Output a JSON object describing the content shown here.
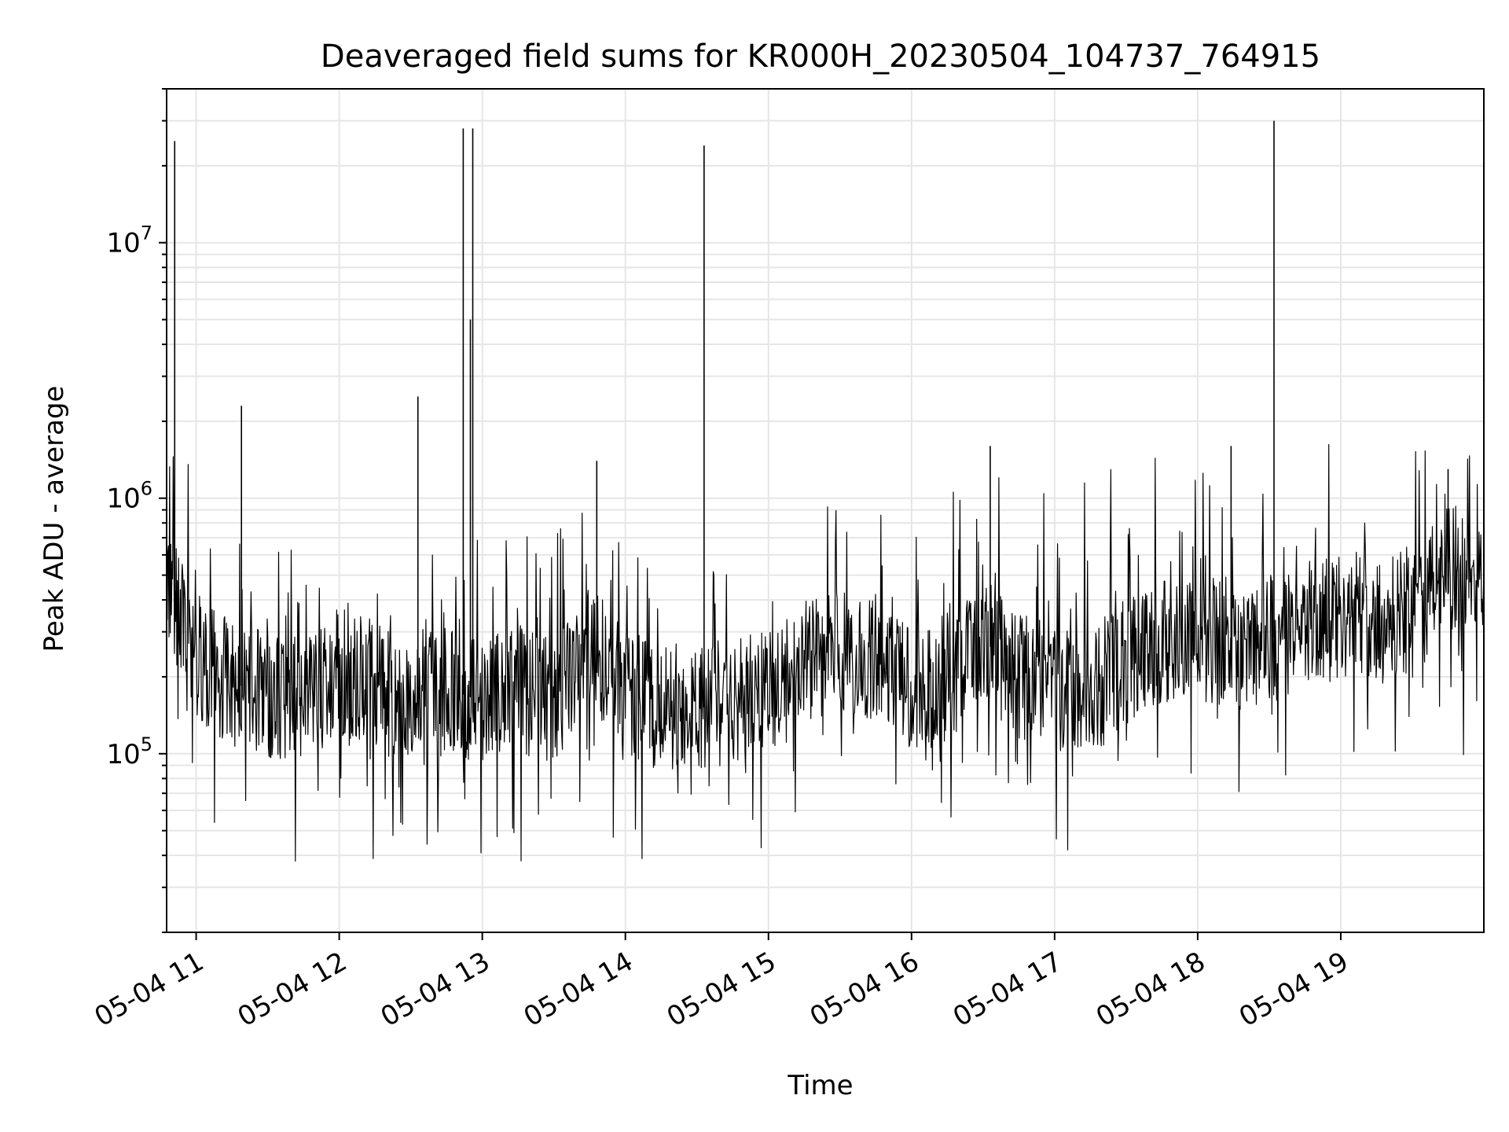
{
  "chart_data": {
    "type": "line",
    "title": "Deaveraged field sums for KR000H_20230504_104737_764915",
    "xlabel": "Time",
    "ylabel": "Peak ADU - average",
    "yscale": "log",
    "ylim": [
      20000,
      40000000
    ],
    "xlim": [
      "2023-05-04T10:47:37",
      "2023-05-04T20:00:00"
    ],
    "grid": true,
    "line_color": "#000000",
    "x_ticks": [
      {
        "t": "2023-05-04T11:00",
        "label": "05-04 11"
      },
      {
        "t": "2023-05-04T12:00",
        "label": "05-04 12"
      },
      {
        "t": "2023-05-04T13:00",
        "label": "05-04 13"
      },
      {
        "t": "2023-05-04T14:00",
        "label": "05-04 14"
      },
      {
        "t": "2023-05-04T15:00",
        "label": "05-04 15"
      },
      {
        "t": "2023-05-04T16:00",
        "label": "05-04 16"
      },
      {
        "t": "2023-05-04T17:00",
        "label": "05-04 17"
      },
      {
        "t": "2023-05-04T18:00",
        "label": "05-04 18"
      },
      {
        "t": "2023-05-04T19:00",
        "label": "05-04 19"
      }
    ],
    "y_ticks": [
      {
        "value": 100000,
        "base": "10",
        "exp": "5"
      },
      {
        "value": 1000000,
        "base": "10",
        "exp": "6"
      },
      {
        "value": 10000000,
        "base": "10",
        "exp": "7"
      }
    ],
    "spikes": [
      {
        "t": "2023-05-04T10:51:00",
        "value": 25000000
      },
      {
        "t": "2023-05-04T11:19:00",
        "value": 2300000
      },
      {
        "t": "2023-05-04T12:33:00",
        "value": 2500000
      },
      {
        "t": "2023-05-04T12:52:00",
        "value": 28000000
      },
      {
        "t": "2023-05-04T12:55:00",
        "value": 5000000
      },
      {
        "t": "2023-05-04T12:56:00",
        "value": 28000000
      },
      {
        "t": "2023-05-04T13:48:00",
        "value": 1400000
      },
      {
        "t": "2023-05-04T14:33:00",
        "value": 24000000
      },
      {
        "t": "2023-05-04T16:33:00",
        "value": 1600000
      },
      {
        "t": "2023-05-04T18:14:00",
        "value": 1600000
      },
      {
        "t": "2023-05-04T18:32:00",
        "value": 30000000
      },
      {
        "t": "2023-05-04T19:45:00",
        "value": 1300000
      }
    ],
    "baseline": [
      {
        "t": "2023-05-04T10:48",
        "value": 500000
      },
      {
        "t": "2023-05-04T11:00",
        "value": 240000
      },
      {
        "t": "2023-05-04T11:15",
        "value": 190000
      },
      {
        "t": "2023-05-04T11:30",
        "value": 170000
      },
      {
        "t": "2023-05-04T11:45",
        "value": 160000
      },
      {
        "t": "2023-05-04T12:00",
        "value": 210000
      },
      {
        "t": "2023-05-04T12:15",
        "value": 190000
      },
      {
        "t": "2023-05-04T12:30",
        "value": 150000
      },
      {
        "t": "2023-05-04T12:45",
        "value": 180000
      },
      {
        "t": "2023-05-04T13:00",
        "value": 160000
      },
      {
        "t": "2023-05-04T13:15",
        "value": 180000
      },
      {
        "t": "2023-05-04T13:30",
        "value": 160000
      },
      {
        "t": "2023-05-04T13:45",
        "value": 260000
      },
      {
        "t": "2023-05-04T14:00",
        "value": 180000
      },
      {
        "t": "2023-05-04T14:15",
        "value": 145000
      },
      {
        "t": "2023-05-04T14:30",
        "value": 150000
      },
      {
        "t": "2023-05-04T14:45",
        "value": 160000
      },
      {
        "t": "2023-05-04T15:00",
        "value": 175000
      },
      {
        "t": "2023-05-04T15:15",
        "value": 240000
      },
      {
        "t": "2023-05-04T15:30",
        "value": 260000
      },
      {
        "t": "2023-05-04T15:45",
        "value": 240000
      },
      {
        "t": "2023-05-04T16:00",
        "value": 180000
      },
      {
        "t": "2023-05-04T16:15",
        "value": 190000
      },
      {
        "t": "2023-05-04T16:30",
        "value": 280000
      },
      {
        "t": "2023-05-04T16:45",
        "value": 200000
      },
      {
        "t": "2023-05-04T17:00",
        "value": 190000
      },
      {
        "t": "2023-05-04T17:15",
        "value": 170000
      },
      {
        "t": "2023-05-04T17:30",
        "value": 230000
      },
      {
        "t": "2023-05-04T17:45",
        "value": 270000
      },
      {
        "t": "2023-05-04T18:00",
        "value": 290000
      },
      {
        "t": "2023-05-04T18:15",
        "value": 260000
      },
      {
        "t": "2023-05-04T18:30",
        "value": 280000
      },
      {
        "t": "2023-05-04T18:45",
        "value": 320000
      },
      {
        "t": "2023-05-04T19:00",
        "value": 350000
      },
      {
        "t": "2023-05-04T19:15",
        "value": 330000
      },
      {
        "t": "2023-05-04T19:30",
        "value": 340000
      },
      {
        "t": "2023-05-04T19:45",
        "value": 560000
      },
      {
        "t": "2023-05-04T20:00",
        "value": 440000
      }
    ]
  }
}
